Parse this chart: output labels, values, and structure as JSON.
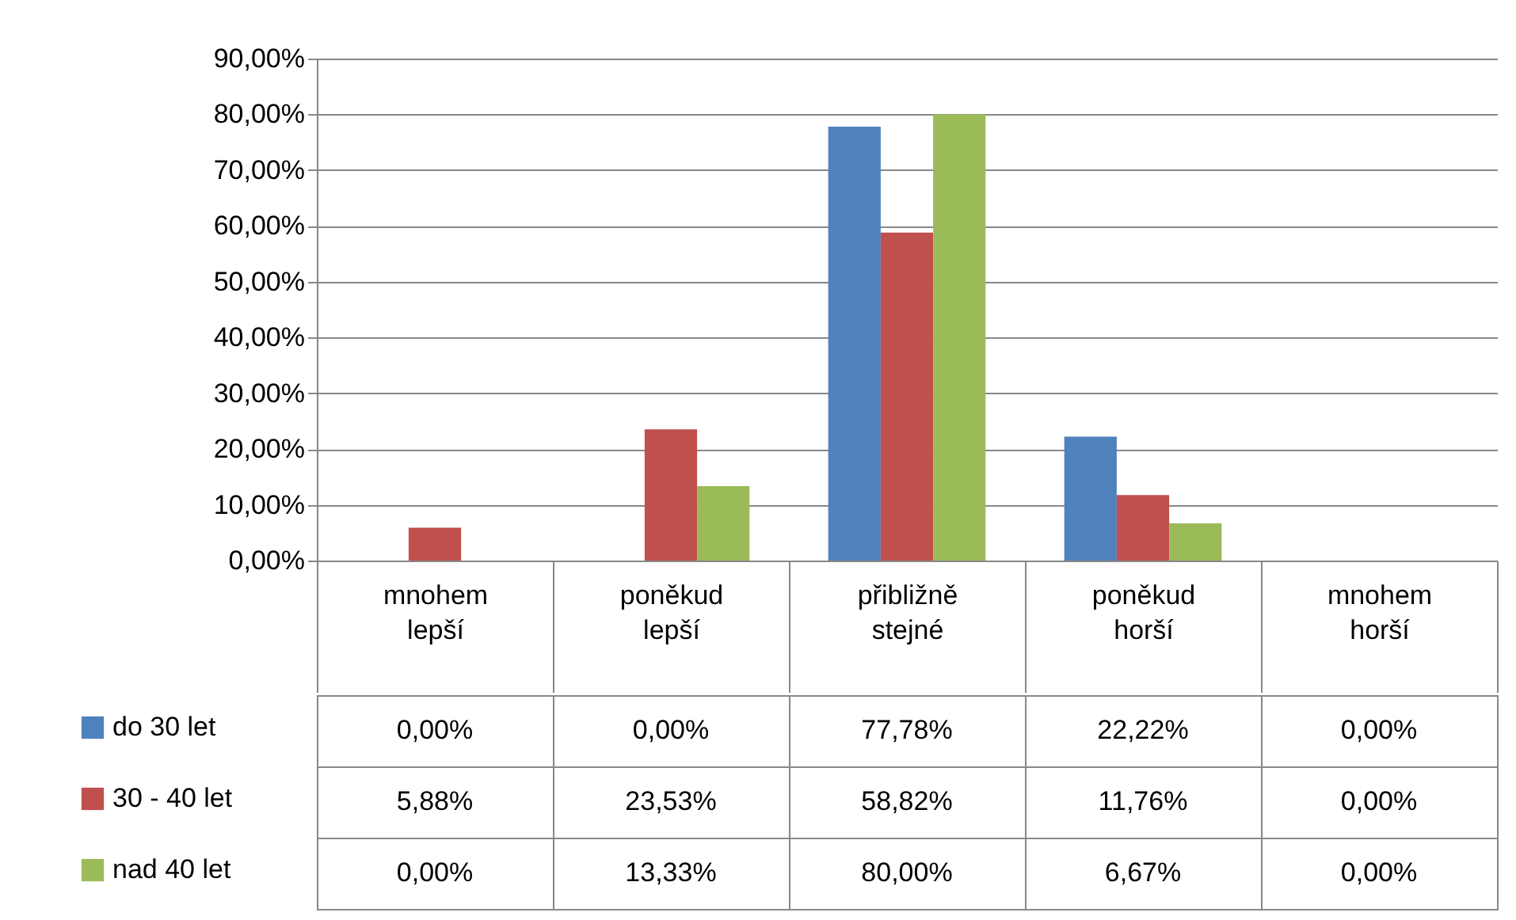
{
  "chart_data": {
    "type": "bar",
    "categories": [
      "mnohem lepší",
      "poněkud lepší",
      "přibližně stejné",
      "poněkud horší",
      "mnohem horší"
    ],
    "series": [
      {
        "name": "do 30 let",
        "color": "#4f81bd",
        "values": [
          0,
          0,
          77.78,
          22.22,
          0
        ],
        "value_labels": [
          "0,00%",
          "0,00%",
          "77,78%",
          "22,22%",
          "0,00%"
        ]
      },
      {
        "name": "30 - 40 let",
        "color": "#c0504d",
        "values": [
          5.88,
          23.53,
          58.82,
          11.76,
          0
        ],
        "value_labels": [
          "5,88%",
          "23,53%",
          "58,82%",
          "11,76%",
          "0,00%"
        ]
      },
      {
        "name": "nad 40 let",
        "color": "#9bbb59",
        "values": [
          0,
          13.33,
          80,
          6.67,
          0
        ],
        "value_labels": [
          "0,00%",
          "13,33%",
          "80,00%",
          "6,67%",
          "0,00%"
        ]
      }
    ],
    "ylim": [
      0,
      90
    ],
    "yticks": [
      {
        "value": 0,
        "label": "0,00%"
      },
      {
        "value": 10,
        "label": "10,00%"
      },
      {
        "value": 20,
        "label": "20,00%"
      },
      {
        "value": 30,
        "label": "30,00%"
      },
      {
        "value": 40,
        "label": "40,00%"
      },
      {
        "value": 50,
        "label": "50,00%"
      },
      {
        "value": 60,
        "label": "60,00%"
      },
      {
        "value": 70,
        "label": "70,00%"
      },
      {
        "value": 80,
        "label": "80,00%"
      },
      {
        "value": 90,
        "label": "90,00%"
      }
    ],
    "grid": "y",
    "legend": "bottom left"
  }
}
